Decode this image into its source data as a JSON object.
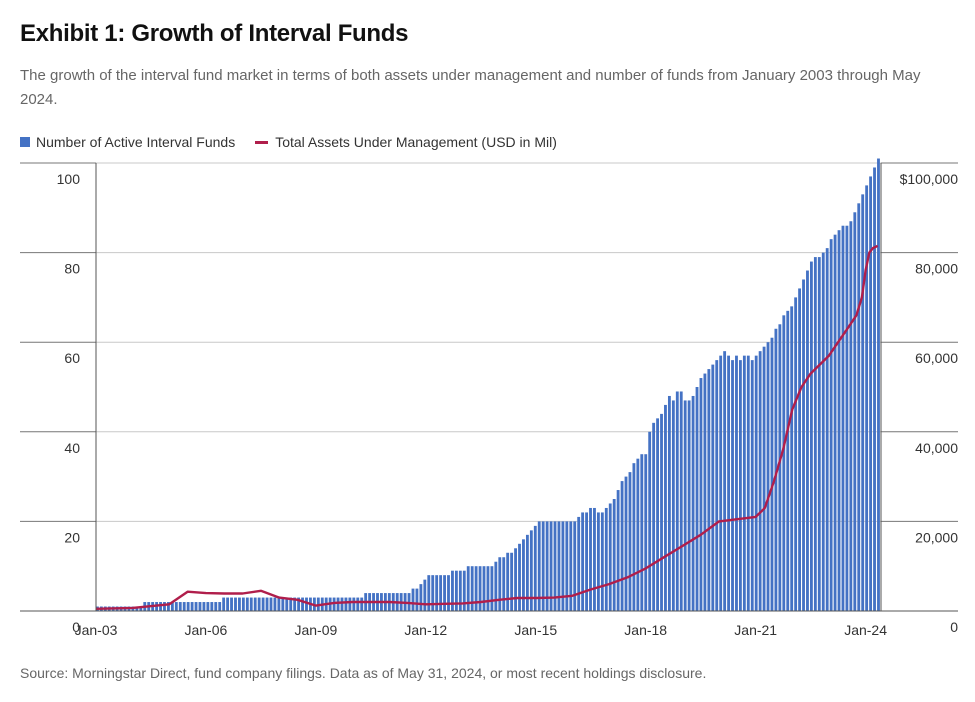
{
  "header": {
    "title": "Exhibit 1: Growth of Interval Funds",
    "subtitle": "The growth of the interval fund market in terms of both assets under management and number of funds from January 2003 through May 2024."
  },
  "footer": {
    "source": "Source: Morningstar Direct, fund company filings. Data as of May 31, 2024, or most recent holdings disclosure."
  },
  "colors": {
    "bars": "#4472C4",
    "bar_edge": "#ffffff",
    "line": "#B01E4B",
    "grid": "#c8c8c8",
    "axis": "#555555"
  },
  "chart_data": {
    "type": "bar",
    "title": "Exhibit 1: Growth of Interval Funds",
    "xlabel": "",
    "ylabel_left": "",
    "ylabel_right": "",
    "x_range": [
      "2003-01",
      "2024-05"
    ],
    "x_tick_labels": [
      "Jan-03",
      "Jan-06",
      "Jan-09",
      "Jan-12",
      "Jan-15",
      "Jan-18",
      "Jan-21",
      "Jan-24"
    ],
    "y_left": {
      "range": [
        0,
        100
      ],
      "ticks": [
        0,
        20,
        40,
        60,
        80,
        100
      ]
    },
    "y_right": {
      "range": [
        0,
        100000
      ],
      "ticks": [
        "0",
        "20,000",
        "40,000",
        "60,000",
        "80,000",
        "$100,000"
      ]
    },
    "grid": true,
    "legend_position": "top-left",
    "series": [
      {
        "name": "Number of Active Interval Funds",
        "type": "bar",
        "axis": "left",
        "frequency": "quarterly",
        "values": [
          1,
          1,
          1,
          1,
          1,
          1,
          1,
          1,
          1,
          1,
          1,
          1,
          2,
          2,
          2,
          2,
          2,
          2,
          2,
          2,
          2,
          2,
          2,
          2,
          2,
          2,
          2,
          2,
          2,
          2,
          2,
          2,
          3,
          3,
          3,
          3,
          3,
          3,
          3,
          3,
          3,
          3,
          3,
          3,
          3,
          3,
          3,
          3,
          3,
          3,
          3,
          3,
          3,
          3,
          3,
          3,
          3,
          3,
          3,
          3,
          3,
          3,
          3,
          3,
          3,
          3,
          3,
          3,
          4,
          4,
          4,
          4,
          4,
          4,
          4,
          4,
          4,
          4,
          4,
          4,
          5,
          5,
          6,
          7,
          8,
          8,
          8,
          8,
          8,
          8,
          9,
          9,
          9,
          9,
          10,
          10,
          10,
          10,
          10,
          10,
          10,
          11,
          12,
          12,
          13,
          13,
          14,
          15,
          16,
          17,
          18,
          19,
          20,
          20,
          20,
          20,
          20,
          20,
          20,
          20,
          20,
          20,
          21,
          22,
          22,
          23,
          23,
          22,
          22,
          23,
          24,
          25,
          27,
          29,
          30,
          31,
          33,
          34,
          35,
          35,
          40,
          42,
          43,
          44,
          46,
          48,
          47,
          49,
          49,
          47,
          47,
          48,
          50,
          52,
          53,
          54,
          55,
          56,
          57,
          58,
          57,
          56,
          57,
          56,
          57,
          57,
          56,
          57,
          58,
          59,
          60,
          61,
          63,
          64,
          66,
          67,
          68,
          70,
          72,
          74,
          76,
          78,
          79,
          79,
          80,
          81,
          83,
          84,
          85,
          86,
          86,
          87,
          89,
          91,
          93,
          95,
          97,
          99,
          101
        ]
      },
      {
        "name": "Total Assets Under Management (USD in Mil)",
        "type": "line",
        "axis": "right",
        "x": [
          2003.0,
          2004.0,
          2005.0,
          2005.5,
          2006.0,
          2006.5,
          2007.0,
          2007.5,
          2008.0,
          2008.5,
          2009.0,
          2009.5,
          2010.0,
          2010.5,
          2011.0,
          2011.5,
          2012.0,
          2012.5,
          2013.0,
          2013.5,
          2014.0,
          2014.5,
          2015.0,
          2015.5,
          2016.0,
          2016.5,
          2017.0,
          2017.5,
          2018.0,
          2018.5,
          2019.0,
          2019.5,
          2020.0,
          2020.5,
          2021.0,
          2021.25,
          2021.5,
          2021.75,
          2022.0,
          2022.25,
          2022.5,
          2022.75,
          2023.0,
          2023.25,
          2023.5,
          2023.75,
          2023.9,
          2024.0,
          2024.1,
          2024.2,
          2024.33
        ],
        "values": [
          500,
          700,
          1500,
          4300,
          4000,
          3900,
          3900,
          4500,
          3000,
          2500,
          1200,
          1800,
          2000,
          2000,
          2000,
          1800,
          1500,
          1600,
          1700,
          2000,
          2500,
          2900,
          2900,
          3000,
          3400,
          4800,
          6000,
          7500,
          9500,
          12000,
          14500,
          17000,
          20000,
          20500,
          21000,
          23000,
          29000,
          36000,
          45000,
          50000,
          53000,
          55000,
          57000,
          60000,
          63000,
          66000,
          70000,
          76000,
          80000,
          81000,
          81500
        ]
      }
    ]
  }
}
